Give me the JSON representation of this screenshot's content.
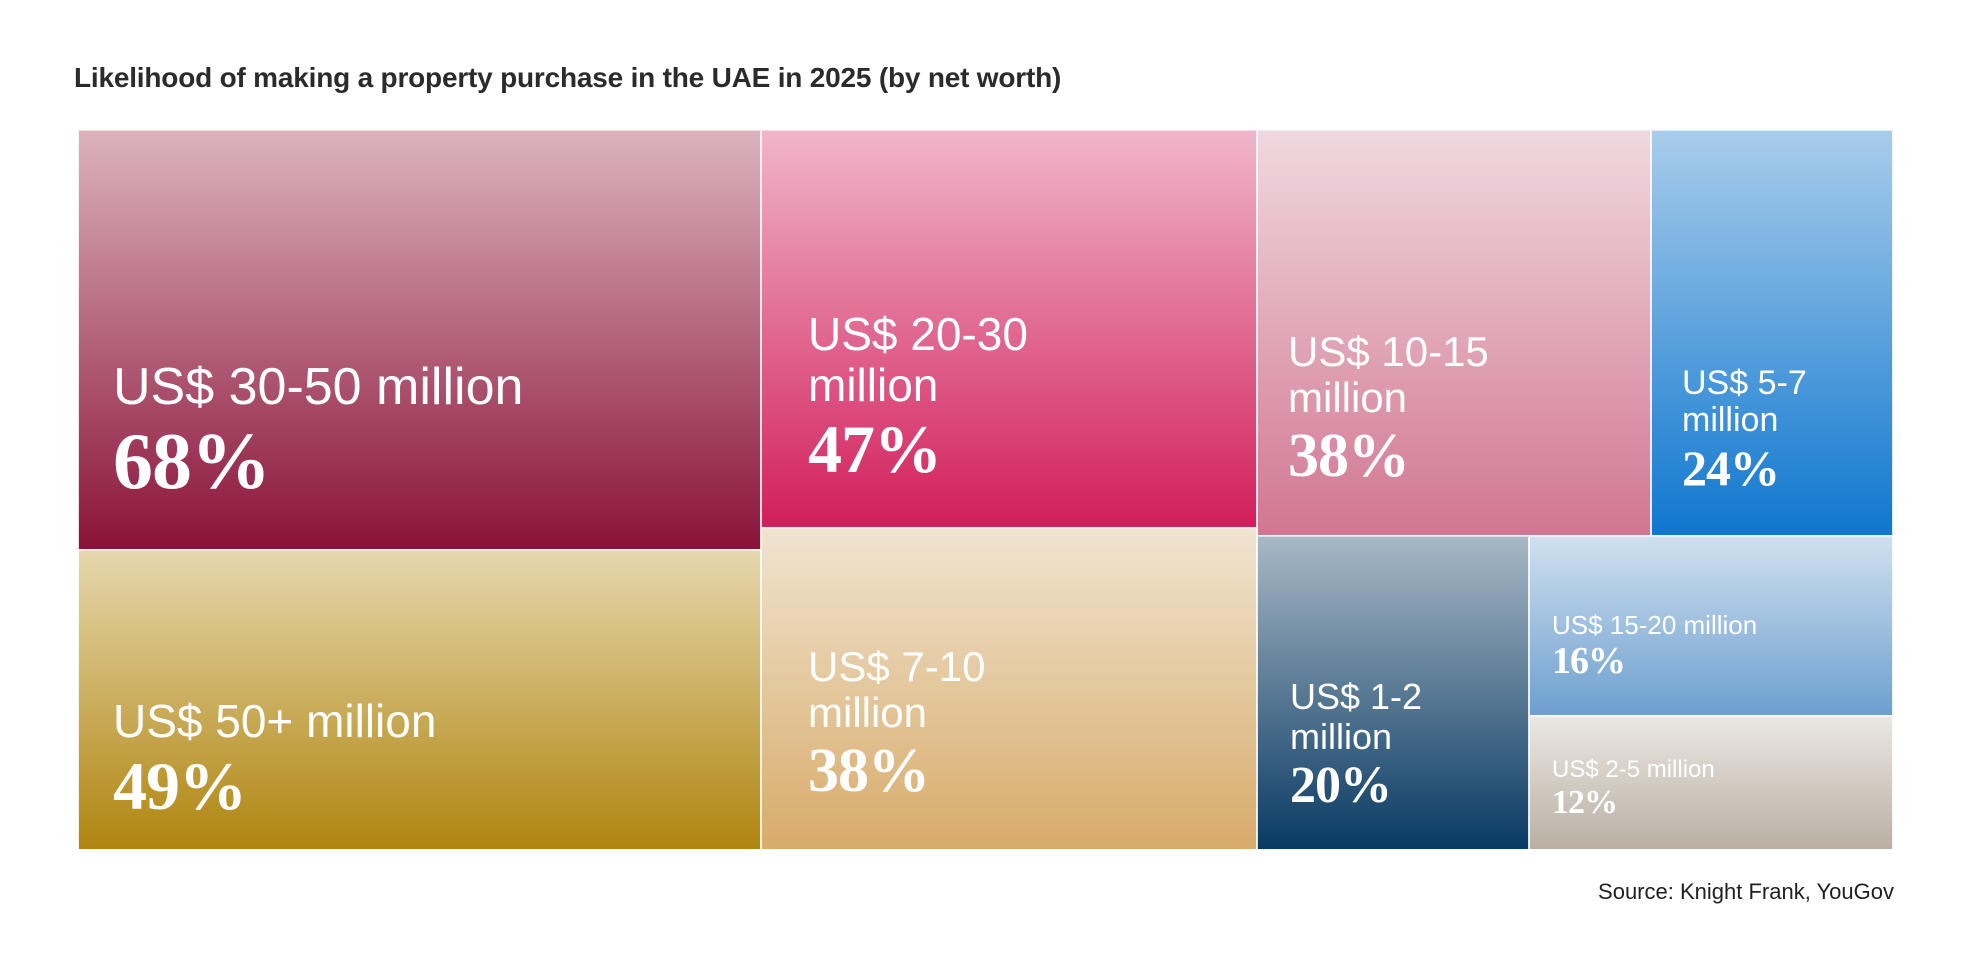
{
  "title": "Likelihood of making a property purchase in the UAE in 2025 (by net worth)",
  "source": "Source: Knight Frank, YouGov",
  "chart_data": {
    "type": "treemap",
    "title": "Likelihood of making a property purchase in the UAE in 2025 (by net worth)",
    "source": "Source: Knight Frank, YouGov",
    "unit": "%",
    "items": [
      {
        "label": "US$ 30-50 million",
        "value": 68,
        "display": "68%",
        "color_top": "#dcb3bf",
        "color_bottom": "#8a1239"
      },
      {
        "label": "US$ 50+ million",
        "value": 49,
        "display": "49%",
        "color_top": "#e6d7ae",
        "color_bottom": "#b0850f"
      },
      {
        "label": "US$ 20-30 million",
        "value": 47,
        "display": "47%",
        "color_top": "#f0b6c9",
        "color_bottom": "#d21e5b"
      },
      {
        "label": "US$ 7-10 million",
        "value": 38,
        "display": "38%",
        "color_top": "#f0e4d0",
        "color_bottom": "#d8ab6a"
      },
      {
        "label": "US$ 10-15 million",
        "value": 38,
        "display": "38%",
        "color_top": "#f0d8df",
        "color_bottom": "#d27692"
      },
      {
        "label": "US$ 5-7 million",
        "value": 24,
        "display": "24%",
        "color_top": "#a9cdeb",
        "color_bottom": "#0f77cf"
      },
      {
        "label": "US$ 1-2 million",
        "value": 20,
        "display": "20%",
        "color_top": "#a8b8c5",
        "color_bottom": "#093a63"
      },
      {
        "label": "US$ 15-20 million",
        "value": 16,
        "display": "16%",
        "color_top": "#cfe0ef",
        "color_bottom": "#6d9fcf"
      },
      {
        "label": "US$ 2-5 million",
        "value": 12,
        "display": "12%",
        "color_top": "#ebe7e3",
        "color_bottom": "#b9b0a3"
      }
    ]
  }
}
